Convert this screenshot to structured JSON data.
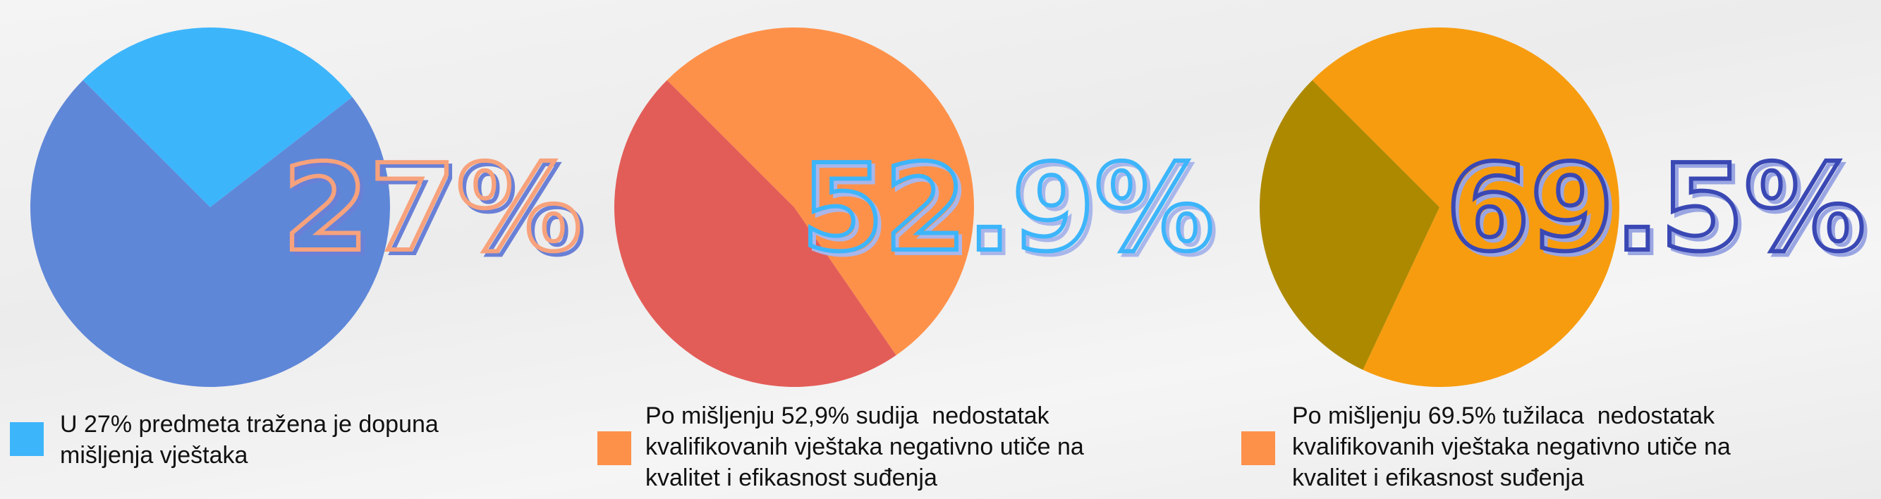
{
  "chart_data": [
    {
      "type": "pie",
      "categories": [
        "U 27% predmeta tražena je dopuna mišljenja vještaka",
        null
      ],
      "values": [
        27,
        73
      ],
      "value_labels": [
        "27%",
        null
      ],
      "colors": [
        "#3db5fb",
        "#5f87d8"
      ],
      "legend_color": "#3db5fb",
      "label_color": "#f7a27c",
      "label_shadow_color": "#6a80d6"
    },
    {
      "type": "pie",
      "categories": [
        "Po mišljenju 52,9% sudija  nedostatak kvalifikovanih vještaka negativno utiče na kvalitet i efikasnost suđenja",
        null
      ],
      "values": [
        52.9,
        47.1
      ],
      "value_labels": [
        "52.9%",
        null
      ],
      "colors": [
        "#fe914a",
        "#e35d58"
      ],
      "legend_color": "#fe914a",
      "label_color": "#3db5fb",
      "label_shadow_color": "#a9b6ea"
    },
    {
      "type": "pie",
      "categories": [
        "Po mišljenju 69.5% tužilaca  nedostatak kvalifikovanih vještaka negativno utiče na kvalitet i efikasnost suđenja",
        null
      ],
      "values": [
        69.5,
        30.5
      ],
      "value_labels": [
        "69.5%",
        null
      ],
      "colors": [
        "#f79c0f",
        "#ad8900"
      ],
      "legend_color": "#fe914a",
      "label_color": "#3a48b4",
      "label_shadow_color": "#9aa6e2"
    }
  ]
}
